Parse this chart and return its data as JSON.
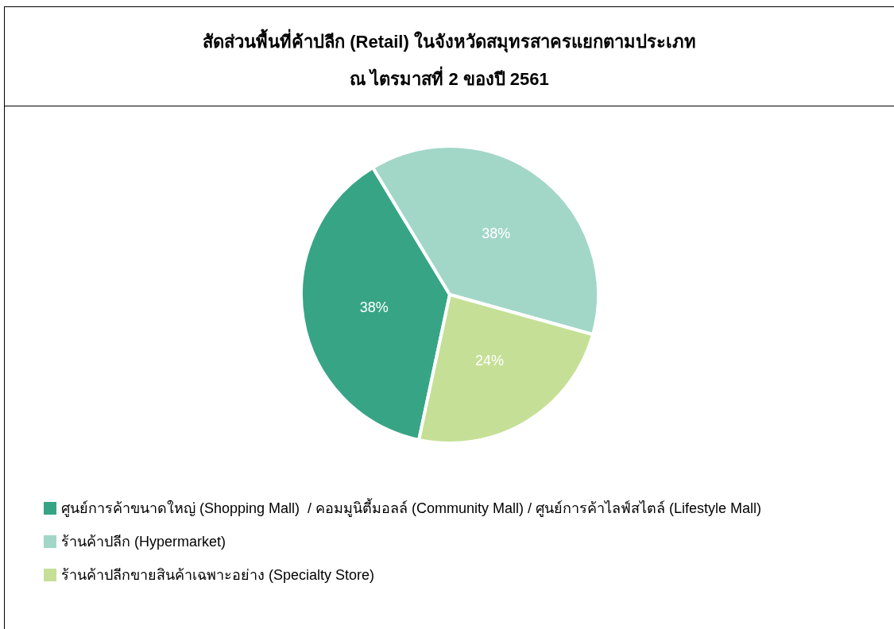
{
  "chart_data": {
    "type": "pie",
    "title": "สัดส่วนพื้นที่ค้าปลีก (Retail) ในจังหวัดสมุทรสาครแยกตามประเภท",
    "subtitle": "ณ ไตรมาสที่ 2 ของปี 2561",
    "categories": [
      "ศูนย์การค้าขนาดใหญ่ (Shopping Mall)  / คอมมูนิตี้มอลล์ (Community Mall) / ศูนย์การค้าไลฟ์สไตล์ (Lifestyle Mall)",
      "ร้านค้าปลีก (Hypermarket)",
      "ร้านค้าปลีกขายสินค้าเฉพาะอย่าง (Specialty Store)"
    ],
    "values": [
      38,
      38,
      24
    ],
    "value_labels": [
      "38%",
      "38%",
      "24%"
    ],
    "colors": [
      "#37a585",
      "#a2d7c8",
      "#c5e096"
    ],
    "legend": "bottom left"
  }
}
